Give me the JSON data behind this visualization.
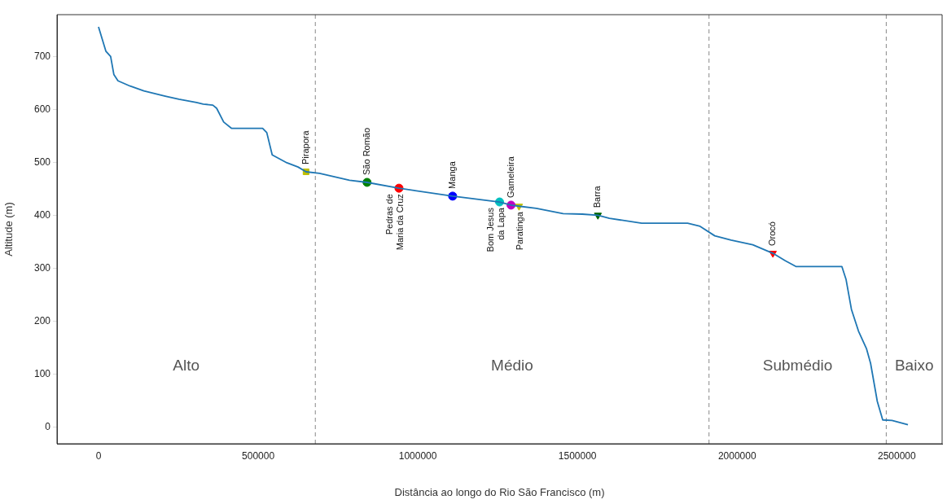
{
  "chart_data": {
    "type": "line",
    "xlabel": "Distância ao longo do Rio São Francisco (m)",
    "ylabel": "Altitude (m)",
    "xlim": [
      -130000,
      2642000
    ],
    "ylim": [
      -31,
      780
    ],
    "xticks": [
      0,
      500000,
      1000000,
      1500000,
      2000000,
      2500000
    ],
    "yticks": [
      0,
      100,
      200,
      300,
      400,
      500,
      600,
      700
    ],
    "grid": false,
    "legend": false,
    "marker": "none",
    "series": [
      {
        "type": "line",
        "color": "#1f77b4",
        "x": [
          0,
          23000,
          38000,
          48000,
          61000,
          99000,
          142000,
          209000,
          252000,
          307000,
          328000,
          358000,
          370000,
          392000,
          417000,
          514000,
          527000,
          544000,
          590000,
          625000,
          650000,
          692000,
          786000,
          841000,
          941000,
          1109000,
          1256000,
          1292000,
          1317000,
          1371000,
          1455000,
          1515000,
          1564000,
          1600000,
          1701000,
          1845000,
          1884000,
          1930000,
          1981000,
          2049000,
          2112000,
          2151000,
          2184000,
          2328000,
          2341000,
          2358000,
          2380000,
          2405000,
          2418000,
          2439000,
          2456000,
          2485000,
          2535000
        ],
        "values": [
          757,
          711,
          701,
          667,
          655,
          645,
          636,
          626,
          620,
          614,
          611,
          609,
          603,
          577,
          565,
          565,
          557,
          515,
          500,
          492,
          483,
          480,
          467,
          463,
          452,
          437,
          426,
          420,
          418,
          414,
          404,
          403,
          401,
          395,
          386,
          386,
          380,
          362,
          354,
          345,
          329,
          315,
          304,
          304,
          280,
          223,
          182,
          149,
          121,
          49,
          14,
          13,
          5
        ]
      },
      {
        "type": "scatter",
        "name": "Pirapora",
        "color": "#bfbf00",
        "marker": "square",
        "x": [
          650000
        ],
        "values": [
          483
        ]
      },
      {
        "type": "scatter",
        "name": "São Romão",
        "color": "#008000",
        "marker": "circle",
        "x": [
          841000
        ],
        "values": [
          463
        ]
      },
      {
        "type": "scatter",
        "name": "Pedras de\nMaria da Cruz",
        "color": "#ff0000",
        "marker": "circle",
        "x": [
          941000
        ],
        "values": [
          452
        ]
      },
      {
        "type": "scatter",
        "name": "Manga",
        "color": "#0000ff",
        "marker": "circle",
        "x": [
          1109000
        ],
        "values": [
          437
        ]
      },
      {
        "type": "scatter",
        "name": "Bom Jesus\nda Lapa",
        "color": "#00bfbf",
        "marker": "circle",
        "x": [
          1256000
        ],
        "values": [
          426
        ]
      },
      {
        "type": "scatter",
        "name": "Gameleira",
        "color": "#bf00bf",
        "marker": "circle",
        "x": [
          1292000
        ],
        "values": [
          420
        ]
      },
      {
        "type": "scatter",
        "name": "Paratinga",
        "color": "#bfbf00",
        "marker": "triangle",
        "x": [
          1317000
        ],
        "values": [
          418
        ]
      },
      {
        "type": "scatter",
        "name": "Barra",
        "color": "#006400",
        "marker": "triangle",
        "x": [
          1564000
        ],
        "values": [
          401
        ]
      },
      {
        "type": "scatter",
        "name": "Orocó",
        "color": "#ff0000",
        "marker": "triangle",
        "x": [
          2112000
        ],
        "values": [
          329
        ]
      }
    ],
    "ref_lines": [
      {
        "axis": "x",
        "value": 679000,
        "color": "#888888",
        "line_style": "dashed"
      },
      {
        "axis": "x",
        "value": 1912000,
        "color": "#888888",
        "line_style": "dashed"
      },
      {
        "axis": "x",
        "value": 2467000,
        "color": "#888888",
        "line_style": "dashed"
      }
    ],
    "annotations": [
      "Alto",
      "Médio",
      "Submédio",
      "Baixo"
    ]
  }
}
